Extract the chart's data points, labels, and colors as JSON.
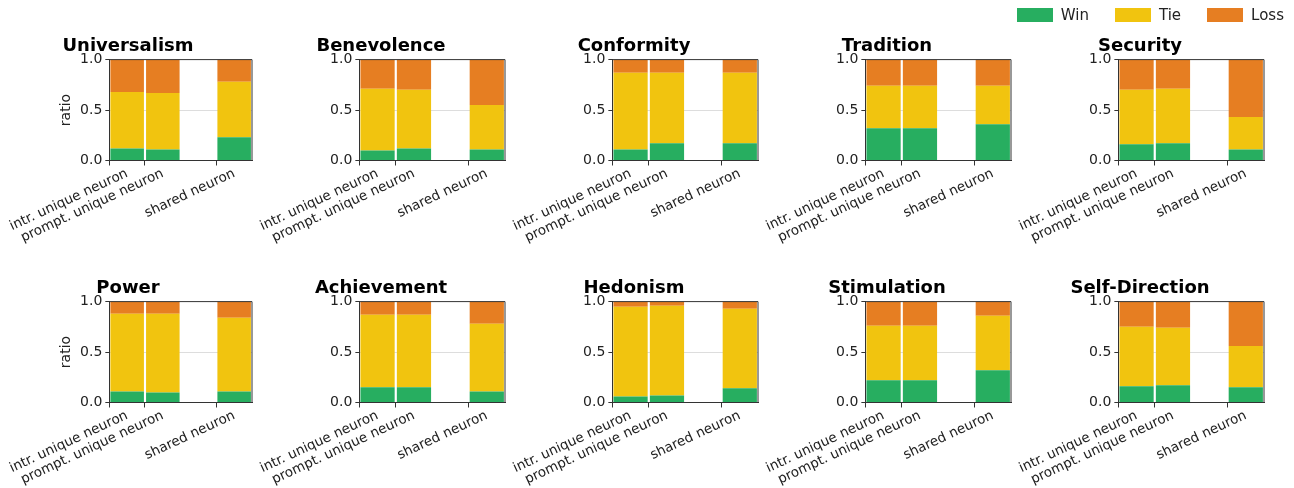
{
  "chart_data": [
    {
      "type": "bar",
      "title": "Universalism",
      "ylabel": "ratio",
      "stacked": true,
      "grid": "y",
      "legend": "top right",
      "categories": [
        "intr. unique neuron",
        "prompt. unique neuron",
        null,
        "shared neuron"
      ],
      "ylim": [
        0,
        1
      ],
      "yticks": [
        {
          "value": 0,
          "label": "0.0"
        },
        {
          "value": 0.5,
          "label": "0.5"
        },
        {
          "value": 1,
          "label": "1.0"
        }
      ],
      "series": [
        {
          "name": "Win",
          "color": "#27ae60",
          "values": [
            0.12,
            0.11,
            null,
            0.23
          ]
        },
        {
          "name": "Tie",
          "color": "#f1c40f",
          "values": [
            0.56,
            0.56,
            null,
            0.55
          ]
        },
        {
          "name": "Loss",
          "color": "#e67e22",
          "values": [
            0.32,
            0.33,
            null,
            0.22
          ]
        }
      ]
    },
    {
      "type": "bar",
      "title": "Benevolence",
      "stacked": true,
      "grid": "y",
      "categories": [
        "intr. unique neuron",
        "prompt. unique neuron",
        null,
        "shared neuron"
      ],
      "ylim": [
        0,
        1
      ],
      "yticks": [
        {
          "value": 0,
          "label": "0.0"
        },
        {
          "value": 0.5,
          "label": "0.5"
        },
        {
          "value": 1,
          "label": "1.0"
        }
      ],
      "series": [
        {
          "color": "#27ae60",
          "values": [
            0.1,
            0.12,
            null,
            0.11
          ]
        },
        {
          "color": "#f1c40f",
          "values": [
            0.61,
            0.58,
            null,
            0.44
          ]
        },
        {
          "color": "#e67e22",
          "values": [
            0.29,
            0.3,
            null,
            0.45
          ]
        }
      ]
    },
    {
      "type": "bar",
      "title": "Conformity",
      "stacked": true,
      "grid": "y",
      "categories": [
        "intr. unique neuron",
        "prompt. unique neuron",
        null,
        "shared neuron"
      ],
      "ylim": [
        0,
        1
      ],
      "yticks": [
        {
          "value": 0,
          "label": "0.0"
        },
        {
          "value": 0.5,
          "label": "0.5"
        },
        {
          "value": 1,
          "label": "1.0"
        }
      ],
      "series": [
        {
          "color": "#27ae60",
          "values": [
            0.11,
            0.17,
            null,
            0.17
          ]
        },
        {
          "color": "#f1c40f",
          "values": [
            0.76,
            0.7,
            null,
            0.7
          ]
        },
        {
          "color": "#e67e22",
          "values": [
            0.13,
            0.13,
            null,
            0.13
          ]
        }
      ]
    },
    {
      "type": "bar",
      "title": "Tradition",
      "stacked": true,
      "grid": "y",
      "categories": [
        "intr. unique neuron",
        "prompt. unique neuron",
        null,
        "shared neuron"
      ],
      "ylim": [
        0,
        1
      ],
      "yticks": [
        {
          "value": 0,
          "label": "0.0"
        },
        {
          "value": 0.5,
          "label": "0.5"
        },
        {
          "value": 1,
          "label": "1.0"
        }
      ],
      "series": [
        {
          "color": "#27ae60",
          "values": [
            0.32,
            0.32,
            null,
            0.36
          ]
        },
        {
          "color": "#f1c40f",
          "values": [
            0.42,
            0.42,
            null,
            0.38
          ]
        },
        {
          "color": "#e67e22",
          "values": [
            0.26,
            0.26,
            null,
            0.26
          ]
        }
      ]
    },
    {
      "type": "bar",
      "title": "Security",
      "stacked": true,
      "grid": "y",
      "categories": [
        "intr. unique neuron",
        "prompt. unique neuron",
        null,
        "shared neuron"
      ],
      "ylim": [
        0,
        1
      ],
      "yticks": [
        {
          "value": 0,
          "label": "0.0"
        },
        {
          "value": 0.5,
          "label": "0.5"
        },
        {
          "value": 1,
          "label": "1.0"
        }
      ],
      "series": [
        {
          "color": "#27ae60",
          "values": [
            0.16,
            0.17,
            null,
            0.11
          ]
        },
        {
          "color": "#f1c40f",
          "values": [
            0.54,
            0.54,
            null,
            0.32
          ]
        },
        {
          "color": "#e67e22",
          "values": [
            0.3,
            0.29,
            null,
            0.57
          ]
        }
      ]
    },
    {
      "type": "bar",
      "title": "Power",
      "ylabel": "ratio",
      "stacked": true,
      "grid": "y",
      "categories": [
        "intr. unique neuron",
        "prompt. unique neuron",
        null,
        "shared neuron"
      ],
      "ylim": [
        0,
        1
      ],
      "yticks": [
        {
          "value": 0,
          "label": "0.0"
        },
        {
          "value": 0.5,
          "label": "0.5"
        },
        {
          "value": 1,
          "label": "1.0"
        }
      ],
      "series": [
        {
          "color": "#27ae60",
          "values": [
            0.11,
            0.1,
            null,
            0.11
          ]
        },
        {
          "color": "#f1c40f",
          "values": [
            0.77,
            0.78,
            null,
            0.73
          ]
        },
        {
          "color": "#e67e22",
          "values": [
            0.12,
            0.12,
            null,
            0.16
          ]
        }
      ]
    },
    {
      "type": "bar",
      "title": "Achievement",
      "stacked": true,
      "grid": "y",
      "categories": [
        "intr. unique neuron",
        "prompt. unique neuron",
        null,
        "shared neuron"
      ],
      "ylim": [
        0,
        1
      ],
      "yticks": [
        {
          "value": 0,
          "label": "0.0"
        },
        {
          "value": 0.5,
          "label": "0.5"
        },
        {
          "value": 1,
          "label": "1.0"
        }
      ],
      "series": [
        {
          "color": "#27ae60",
          "values": [
            0.15,
            0.15,
            null,
            0.11
          ]
        },
        {
          "color": "#f1c40f",
          "values": [
            0.72,
            0.72,
            null,
            0.67
          ]
        },
        {
          "color": "#e67e22",
          "values": [
            0.13,
            0.13,
            null,
            0.22
          ]
        }
      ]
    },
    {
      "type": "bar",
      "title": "Hedonism",
      "stacked": true,
      "grid": "y",
      "categories": [
        "intr. unique neuron",
        "prompt. unique neuron",
        null,
        "shared neuron"
      ],
      "ylim": [
        0,
        1
      ],
      "yticks": [
        {
          "value": 0,
          "label": "0.0"
        },
        {
          "value": 0.5,
          "label": "0.5"
        },
        {
          "value": 1,
          "label": "1.0"
        }
      ],
      "series": [
        {
          "color": "#27ae60",
          "values": [
            0.06,
            0.07,
            null,
            0.14
          ]
        },
        {
          "color": "#f1c40f",
          "values": [
            0.89,
            0.89,
            null,
            0.79
          ]
        },
        {
          "color": "#e67e22",
          "values": [
            0.05,
            0.04,
            null,
            0.07
          ]
        }
      ]
    },
    {
      "type": "bar",
      "title": "Stimulation",
      "stacked": true,
      "grid": "y",
      "categories": [
        "intr. unique neuron",
        "prompt. unique neuron",
        null,
        "shared neuron"
      ],
      "ylim": [
        0,
        1
      ],
      "yticks": [
        {
          "value": 0,
          "label": "0.0"
        },
        {
          "value": 0.5,
          "label": "0.5"
        },
        {
          "value": 1,
          "label": "1.0"
        }
      ],
      "series": [
        {
          "color": "#27ae60",
          "values": [
            0.22,
            0.22,
            null,
            0.32
          ]
        },
        {
          "color": "#f1c40f",
          "values": [
            0.54,
            0.54,
            null,
            0.54
          ]
        },
        {
          "color": "#e67e22",
          "values": [
            0.24,
            0.24,
            null,
            0.14
          ]
        }
      ]
    },
    {
      "type": "bar",
      "title": "Self-Direction",
      "stacked": true,
      "grid": "y",
      "categories": [
        "intr. unique neuron",
        "prompt. unique neuron",
        null,
        "shared neuron"
      ],
      "ylim": [
        0,
        1
      ],
      "yticks": [
        {
          "value": 0,
          "label": "0.0"
        },
        {
          "value": 0.5,
          "label": "0.5"
        },
        {
          "value": 1,
          "label": "1.0"
        }
      ],
      "series": [
        {
          "color": "#27ae60",
          "values": [
            0.16,
            0.17,
            null,
            0.15
          ]
        },
        {
          "color": "#f1c40f",
          "values": [
            0.59,
            0.57,
            null,
            0.41
          ]
        },
        {
          "color": "#e67e22",
          "values": [
            0.25,
            0.26,
            null,
            0.44
          ]
        }
      ]
    }
  ]
}
